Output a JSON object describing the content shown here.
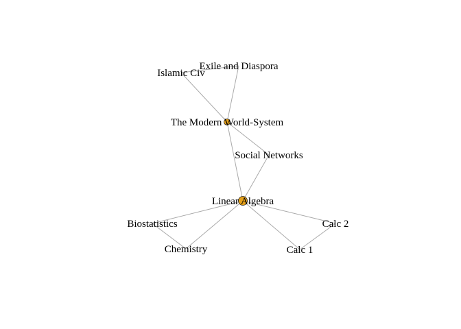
{
  "graph": {
    "node_color": "#e6a11a",
    "edge_color": "#a9a9a9",
    "nodes": [
      {
        "id": "exile",
        "label": "Exile and Diaspora",
        "highlighted": false
      },
      {
        "id": "islamic",
        "label": "Islamic Civ",
        "highlighted": false
      },
      {
        "id": "modern",
        "label": "The Modern World-System",
        "highlighted": true
      },
      {
        "id": "social",
        "label": "Social Networks",
        "highlighted": false
      },
      {
        "id": "linear",
        "label": "Linear Algebra",
        "highlighted": true,
        "badge": "A"
      },
      {
        "id": "biostat",
        "label": "Biostatistics",
        "highlighted": false
      },
      {
        "id": "chem",
        "label": "Chemistry",
        "highlighted": false
      },
      {
        "id": "calc1",
        "label": "Calc 1",
        "highlighted": false
      },
      {
        "id": "calc2",
        "label": "Calc 2",
        "highlighted": false
      }
    ],
    "edges": [
      [
        "islamic",
        "exile"
      ],
      [
        "islamic",
        "modern"
      ],
      [
        "exile",
        "modern"
      ],
      [
        "modern",
        "social"
      ],
      [
        "modern",
        "linear"
      ],
      [
        "social",
        "linear"
      ],
      [
        "linear",
        "biostat"
      ],
      [
        "linear",
        "chem"
      ],
      [
        "biostat",
        "chem"
      ],
      [
        "linear",
        "calc2"
      ],
      [
        "linear",
        "calc1"
      ],
      [
        "calc2",
        "calc1"
      ]
    ]
  }
}
